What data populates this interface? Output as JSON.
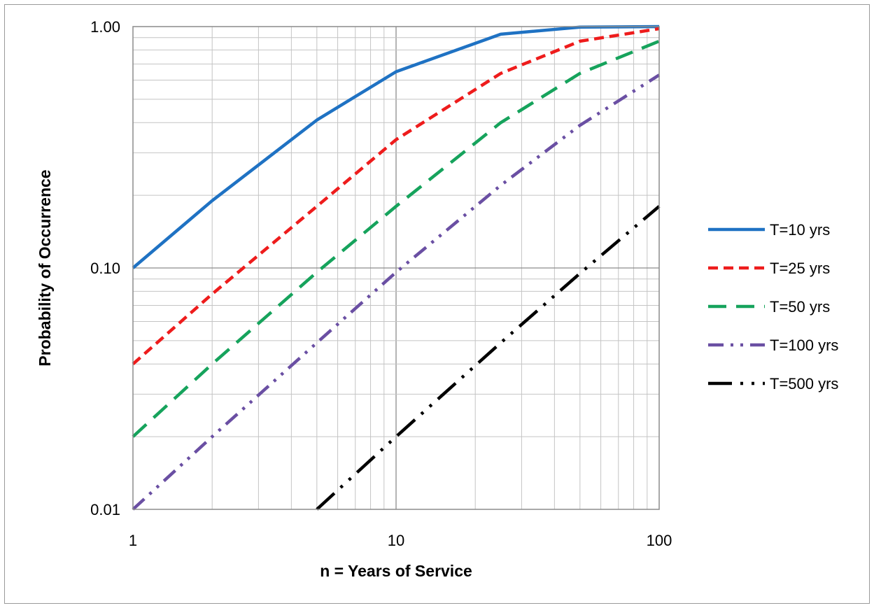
{
  "chart_data": {
    "type": "line",
    "title": "",
    "xlabel": "n = Years of Service",
    "ylabel": "Probability of Occurrence",
    "xscale": "log",
    "yscale": "log",
    "xlim": [
      1,
      100
    ],
    "ylim": [
      0.01,
      1.0
    ],
    "x_ticks": [
      "1",
      "10",
      "100"
    ],
    "y_ticks": [
      "0.01",
      "0.10",
      "1.00"
    ],
    "grid": true,
    "legend_position": "right",
    "series": [
      {
        "name": "T=10 yrs",
        "color": "#1f72c3",
        "style": "solid",
        "x": [
          1,
          2,
          5,
          10,
          25,
          50,
          100
        ],
        "y": [
          0.1,
          0.19,
          0.41,
          0.65,
          0.93,
          0.995,
          1.0
        ]
      },
      {
        "name": "T=25 yrs",
        "color": "#ee1c1c",
        "style": "short-dash",
        "x": [
          1,
          2,
          5,
          10,
          25,
          50,
          100
        ],
        "y": [
          0.04,
          0.078,
          0.18,
          0.34,
          0.64,
          0.87,
          0.98
        ]
      },
      {
        "name": "T=50 yrs",
        "color": "#16a35c",
        "style": "long-dash",
        "x": [
          1,
          2,
          5,
          10,
          25,
          50,
          100
        ],
        "y": [
          0.02,
          0.04,
          0.096,
          0.18,
          0.4,
          0.64,
          0.87
        ]
      },
      {
        "name": "T=100 yrs",
        "color": "#6a4fa3",
        "style": "dash-dot-dot",
        "x": [
          1,
          2,
          5,
          10,
          25,
          50,
          100
        ],
        "y": [
          0.01,
          0.02,
          0.049,
          0.096,
          0.22,
          0.39,
          0.63
        ]
      },
      {
        "name": "T=500 yrs",
        "color": "#000000",
        "style": "long-dash-dot-dot",
        "x": [
          5,
          10,
          25,
          50,
          100
        ],
        "y": [
          0.01,
          0.02,
          0.049,
          0.095,
          0.18
        ]
      }
    ]
  }
}
